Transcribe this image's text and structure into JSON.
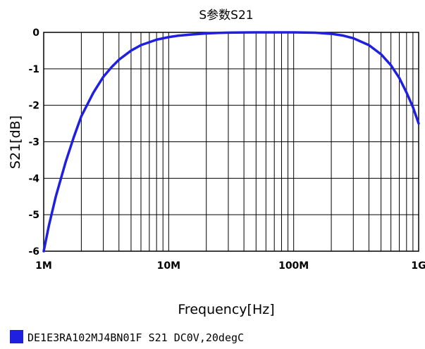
{
  "chart_data": {
    "type": "line",
    "title": "S参数S21",
    "xlabel": "Frequency[Hz]",
    "ylabel": "S21[dB]",
    "x_scale": "log",
    "xlim": [
      1000000,
      1000000000
    ],
    "ylim": [
      -6,
      0
    ],
    "grid": true,
    "x_tick_labels": [
      "1M",
      "10M",
      "100M",
      "1G"
    ],
    "y_tick_labels": [
      "0",
      "-1",
      "-2",
      "-3",
      "-4",
      "-5",
      "-6"
    ],
    "legend_position": "bottom-left",
    "series": [
      {
        "name": "DE1E3RA102MJ4BN01F S21 DC0V,20degC",
        "color": "#1f1fe0",
        "x": [
          1000000,
          1100000,
          1250000,
          1500000,
          1750000,
          2000000,
          2500000,
          3000000,
          3500000,
          4000000,
          5000000,
          6000000,
          7000000,
          8000000,
          10000000,
          12000000,
          15000000,
          20000000,
          25000000,
          30000000,
          40000000,
          50000000,
          70000000,
          100000000,
          150000000,
          200000000,
          250000000,
          300000000,
          400000000,
          500000000,
          600000000,
          700000000,
          800000000,
          900000000,
          1000000000
        ],
        "y": [
          -6.0,
          -5.3,
          -4.5,
          -3.55,
          -2.85,
          -2.3,
          -1.65,
          -1.22,
          -0.95,
          -0.75,
          -0.5,
          -0.35,
          -0.27,
          -0.2,
          -0.13,
          -0.09,
          -0.06,
          -0.03,
          -0.015,
          -0.008,
          -0.003,
          0.0,
          0.0,
          0.0,
          -0.01,
          -0.04,
          -0.09,
          -0.16,
          -0.35,
          -0.6,
          -0.9,
          -1.25,
          -1.65,
          -2.05,
          -2.5
        ]
      }
    ]
  }
}
